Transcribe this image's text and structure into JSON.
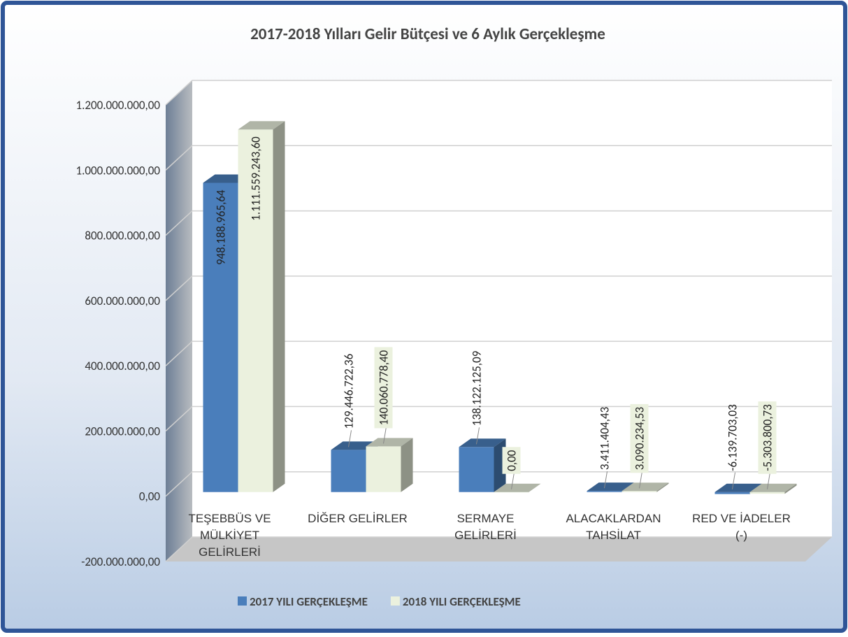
{
  "chart_data": {
    "type": "bar3d",
    "title": "2017-2018 Yılları Gelir  Bütçesi ve 6 Aylık Gerçekleşme",
    "categories": [
      "TEŞEBBÜS VE MÜLKİYET GELİRLERİ",
      "DİĞER GELİRLER",
      "SERMAYE GELİRLERİ",
      "ALACAKLARDAN TAHSİLAT",
      "RED VE İADELER (-)"
    ],
    "series": [
      {
        "name": "2017 YILI GERÇEKLEŞME",
        "color": "#4a7ebb",
        "values": [
          948188965.64,
          129446722.36,
          138122125.09,
          3411404.43,
          -6139703.03
        ],
        "value_labels": [
          "948.188.965,64",
          "129.446.722,36",
          "138.122.125,09",
          "3.411.404,43",
          "-6.139.703,03"
        ]
      },
      {
        "name": "2018 YILI GERÇEKLEŞME",
        "color": "#ebf1de",
        "values": [
          1111559243.6,
          140060778.4,
          0,
          3090234.53,
          -5303800.73
        ],
        "value_labels": [
          "1.111.559.243,60",
          "140.060.778,40",
          "0,00",
          "3.090.234,53",
          "-5.303.800,73"
        ]
      }
    ],
    "ylim": [
      -200000000,
      1200000000
    ],
    "yticks": [
      {
        "value": -200000000,
        "label": "-200.000.000,00"
      },
      {
        "value": 0,
        "label": "0,00"
      },
      {
        "value": 200000000,
        "label": "200.000.000,00"
      },
      {
        "value": 400000000,
        "label": "400.000.000,00"
      },
      {
        "value": 600000000,
        "label": "600.000.000,00"
      },
      {
        "value": 800000000,
        "label": "800.000.000,00"
      },
      {
        "value": 1000000000,
        "label": "1.000.000.000,00"
      },
      {
        "value": 1200000000,
        "label": "1.200.000.000,00"
      }
    ],
    "grid": true,
    "legend": "bottom"
  }
}
